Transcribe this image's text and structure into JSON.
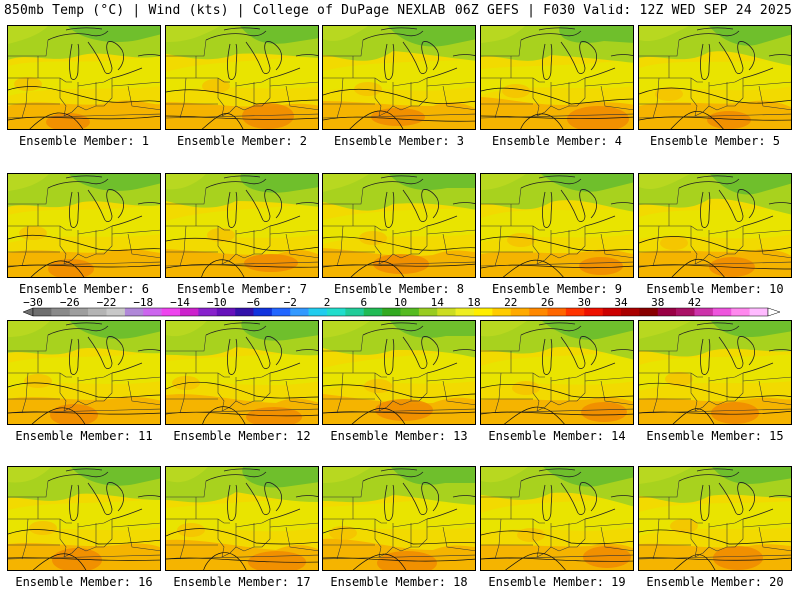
{
  "header": {
    "left": "850mb Temp (°C) | Wind (kts) | College of DuPage NEXLAB",
    "right": "06Z GEFS | F030 Valid: 12Z WED SEP 24 2025"
  },
  "panels": [
    {
      "label": "Ensemble Member: 1"
    },
    {
      "label": "Ensemble Member: 2"
    },
    {
      "label": "Ensemble Member: 3"
    },
    {
      "label": "Ensemble Member: 4"
    },
    {
      "label": "Ensemble Member: 5"
    },
    {
      "label": "Ensemble Member: 6"
    },
    {
      "label": "Ensemble Member: 7"
    },
    {
      "label": "Ensemble Member: 8"
    },
    {
      "label": "Ensemble Member: 9"
    },
    {
      "label": "Ensemble Member: 10"
    },
    {
      "label": "Ensemble Member: 11"
    },
    {
      "label": "Ensemble Member: 12"
    },
    {
      "label": "Ensemble Member: 13"
    },
    {
      "label": "Ensemble Member: 14"
    },
    {
      "label": "Ensemble Member: 15"
    },
    {
      "label": "Ensemble Member: 16"
    },
    {
      "label": "Ensemble Member: 17"
    },
    {
      "label": "Ensemble Member: 18"
    },
    {
      "label": "Ensemble Member: 19"
    },
    {
      "label": "Ensemble Member: 20"
    }
  ],
  "colorbar": {
    "tick_labels": [
      "-30",
      "-26",
      "-22",
      "-18",
      "-14",
      "-10",
      "-6",
      "-2",
      "2",
      "6",
      "10",
      "14",
      "18",
      "22",
      "26",
      "30",
      "34",
      "38",
      "42"
    ],
    "colors": [
      "#6f6f6f",
      "#8a8a8a",
      "#9e9e9e",
      "#b4b4b4",
      "#c8c8c8",
      "#b088d8",
      "#cc66ee",
      "#ee44ee",
      "#cc22cc",
      "#8822cc",
      "#6611bb",
      "#3311aa",
      "#1133dd",
      "#2266ff",
      "#3399ff",
      "#22ccee",
      "#22ddcc",
      "#22cc99",
      "#22bb55",
      "#33aa22",
      "#55bb22",
      "#99cc22",
      "#ccdd22",
      "#eeee22",
      "#ffee00",
      "#ffcc00",
      "#ffaa00",
      "#ff8800",
      "#ff6600",
      "#ff3300",
      "#ee1100",
      "#cc0000",
      "#aa0000",
      "#880000",
      "#990044",
      "#aa1166",
      "#cc33aa",
      "#ee55dd",
      "#ff88ee",
      "#ffbbff"
    ]
  }
}
